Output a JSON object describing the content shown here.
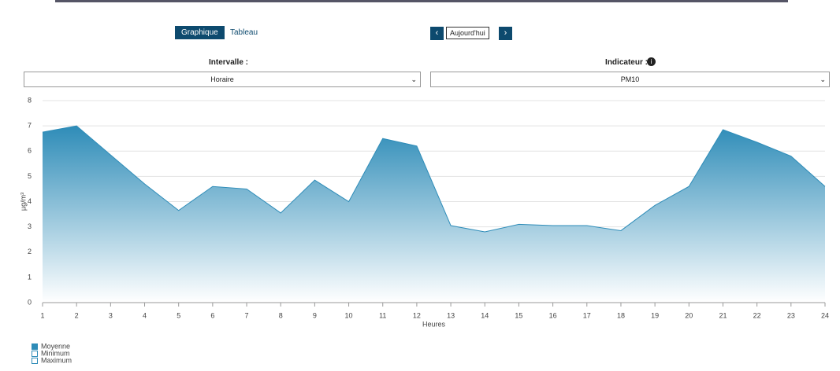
{
  "ui": {
    "tab_chart": "Graphique",
    "tab_table": "Tableau",
    "date_button": "Aujourd'hui",
    "interval_label": "Intervalle :",
    "interval_value": "Horaire",
    "indicator_label": "Indicateur :",
    "indicator_value": "PM10"
  },
  "chart_data": {
    "type": "area",
    "y_label": "µg/m³",
    "x_label": "Heures",
    "x": [
      1,
      2,
      3,
      4,
      5,
      6,
      7,
      8,
      9,
      10,
      11,
      12,
      13,
      14,
      15,
      16,
      17,
      18,
      19,
      20,
      21,
      22,
      23,
      24
    ],
    "xlim": [
      1,
      24
    ],
    "xticks": [
      1,
      2,
      3,
      4,
      5,
      6,
      7,
      8,
      9,
      10,
      11,
      12,
      13,
      14,
      15,
      16,
      17,
      18,
      19,
      20,
      21,
      22,
      23,
      24
    ],
    "ylim": [
      0,
      8
    ],
    "yticks": [
      0,
      1,
      2,
      3,
      4,
      5,
      6,
      7,
      8
    ],
    "grid": true,
    "series": [
      {
        "name": "Moyenne",
        "color": "#2e8cb8",
        "values": [
          6.75,
          7.0,
          5.85,
          4.7,
          3.65,
          4.6,
          4.5,
          3.55,
          4.85,
          4.0,
          6.5,
          6.2,
          3.05,
          2.8,
          3.1,
          3.05,
          3.05,
          2.85,
          3.85,
          4.6,
          6.85,
          6.35,
          5.8,
          4.6
        ]
      }
    ],
    "legend_others": [
      "Minimum",
      "Maximum"
    ]
  }
}
